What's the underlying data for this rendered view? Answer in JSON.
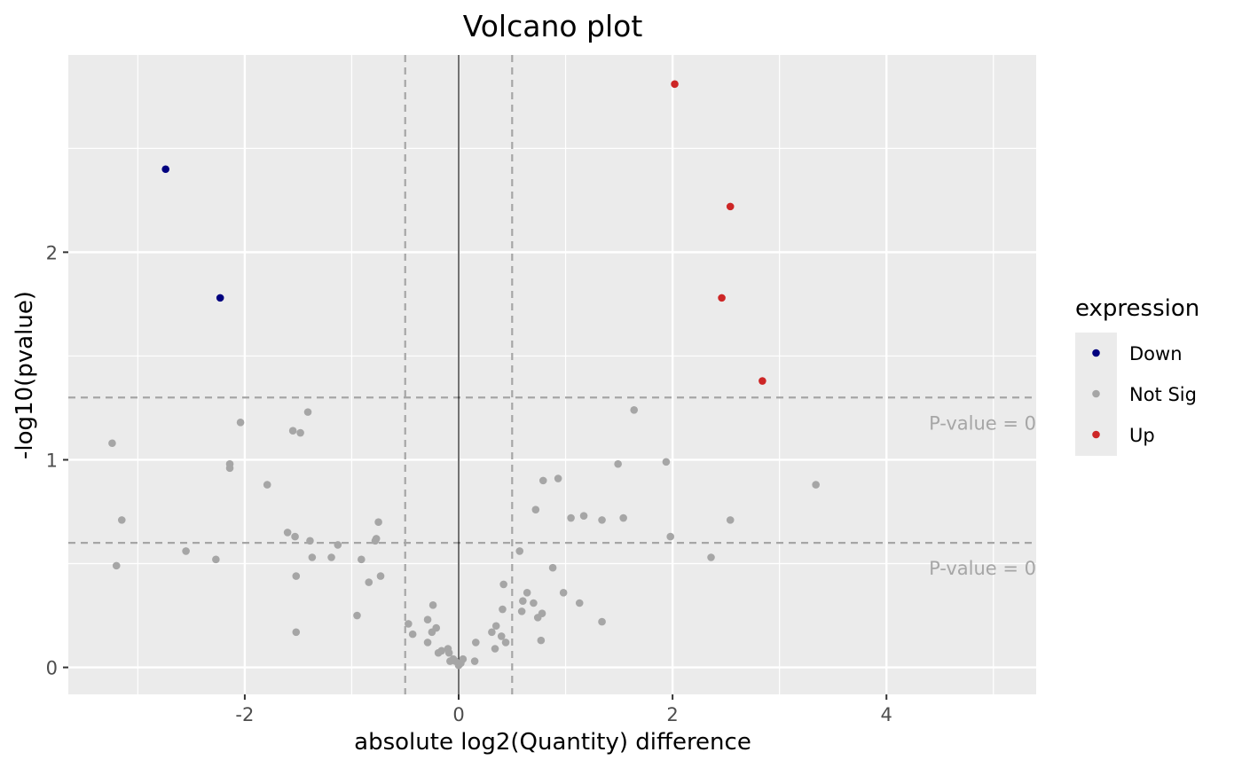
{
  "chart_data": {
    "type": "scatter",
    "title": "Volcano plot",
    "xlabel": "absolute log2(Quantity) difference",
    "ylabel": "-log10(pvalue)",
    "xlim": [
      -3.65,
      5.4
    ],
    "ylim": [
      -0.13,
      2.95
    ],
    "x_ticks": [
      -2,
      0,
      2,
      4
    ],
    "x_tick_labels": [
      "-2",
      "0",
      "2",
      "4"
    ],
    "y_ticks": [
      0,
      1,
      2
    ],
    "y_tick_labels": [
      "0",
      "1",
      "2"
    ],
    "x_minor_gridlines": [
      -3,
      -1,
      1,
      3,
      5
    ],
    "y_minor_gridlines": [
      0.5,
      1.5,
      2.5
    ],
    "grid": true,
    "background": "#ebebeb",
    "zero_line_x": 0,
    "vlines": [
      -0.5,
      0.5
    ],
    "hlines": [
      1.3,
      0.6
    ],
    "annotations": [
      {
        "text": "P-value =  0",
        "x": 5.4,
        "y": 1.18
      },
      {
        "text": "P-value =  0",
        "x": 5.4,
        "y": 0.48
      }
    ],
    "legend": {
      "title": "expression",
      "position": "right",
      "entries": [
        {
          "label": "Down",
          "color": "#00007f"
        },
        {
          "label": "Not Sig",
          "color": "#a6a6a6"
        },
        {
          "label": "Up",
          "color": "#cd2626"
        }
      ]
    },
    "series": [
      {
        "name": "Down",
        "color": "#00007f",
        "points": [
          [
            -2.74,
            2.4
          ],
          [
            -2.23,
            1.78
          ]
        ]
      },
      {
        "name": "Up",
        "color": "#cd2626",
        "points": [
          [
            2.02,
            2.81
          ],
          [
            2.54,
            2.22
          ],
          [
            2.46,
            1.78
          ],
          [
            2.84,
            1.38
          ]
        ]
      },
      {
        "name": "Not Sig",
        "color": "#a6a6a6",
        "points": [
          [
            -3.24,
            1.08
          ],
          [
            -3.2,
            0.49
          ],
          [
            -3.15,
            0.71
          ],
          [
            -2.55,
            0.56
          ],
          [
            -2.27,
            0.52
          ],
          [
            -2.14,
            0.98
          ],
          [
            -2.14,
            0.96
          ],
          [
            -2.04,
            1.18
          ],
          [
            -1.79,
            0.88
          ],
          [
            -1.6,
            0.65
          ],
          [
            -1.55,
            1.14
          ],
          [
            -1.53,
            0.63
          ],
          [
            -1.52,
            0.44
          ],
          [
            -1.52,
            0.17
          ],
          [
            -1.48,
            1.13
          ],
          [
            -1.41,
            1.23
          ],
          [
            -1.39,
            0.61
          ],
          [
            -1.37,
            0.53
          ],
          [
            -1.19,
            0.53
          ],
          [
            -1.13,
            0.59
          ],
          [
            -0.95,
            0.25
          ],
          [
            -0.91,
            0.52
          ],
          [
            -0.84,
            0.41
          ],
          [
            -0.78,
            0.61
          ],
          [
            -0.77,
            0.62
          ],
          [
            -0.75,
            0.7
          ],
          [
            -0.73,
            0.44
          ],
          [
            -0.47,
            0.21
          ],
          [
            -0.43,
            0.16
          ],
          [
            -0.29,
            0.23
          ],
          [
            -0.29,
            0.12
          ],
          [
            -0.25,
            0.17
          ],
          [
            -0.24,
            0.3
          ],
          [
            -0.21,
            0.19
          ],
          [
            -0.19,
            0.07
          ],
          [
            -0.16,
            0.08
          ],
          [
            -0.1,
            0.09
          ],
          [
            -0.09,
            0.07
          ],
          [
            -0.08,
            0.03
          ],
          [
            -0.05,
            0.04
          ],
          [
            -0.03,
            0.03
          ],
          [
            0.0,
            0.01
          ],
          [
            0.02,
            0.02
          ],
          [
            0.04,
            0.04
          ],
          [
            0.15,
            0.03
          ],
          [
            0.16,
            0.12
          ],
          [
            0.31,
            0.17
          ],
          [
            0.34,
            0.09
          ],
          [
            0.35,
            0.2
          ],
          [
            0.4,
            0.15
          ],
          [
            0.41,
            0.28
          ],
          [
            0.42,
            0.4
          ],
          [
            0.44,
            0.12
          ],
          [
            0.57,
            0.56
          ],
          [
            0.59,
            0.27
          ],
          [
            0.6,
            0.32
          ],
          [
            0.64,
            0.36
          ],
          [
            0.7,
            0.31
          ],
          [
            0.72,
            0.76
          ],
          [
            0.74,
            0.24
          ],
          [
            0.77,
            0.13
          ],
          [
            0.78,
            0.26
          ],
          [
            0.79,
            0.9
          ],
          [
            0.88,
            0.48
          ],
          [
            0.93,
            0.91
          ],
          [
            0.98,
            0.36
          ],
          [
            1.05,
            0.72
          ],
          [
            1.13,
            0.31
          ],
          [
            1.17,
            0.73
          ],
          [
            1.34,
            0.71
          ],
          [
            1.34,
            0.22
          ],
          [
            1.49,
            0.98
          ],
          [
            1.54,
            0.72
          ],
          [
            1.64,
            1.24
          ],
          [
            1.94,
            0.99
          ],
          [
            1.98,
            0.63
          ],
          [
            2.36,
            0.53
          ],
          [
            2.54,
            0.71
          ],
          [
            3.34,
            0.88
          ]
        ]
      }
    ]
  }
}
